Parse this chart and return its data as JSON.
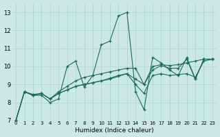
{
  "xlabel": "Humidex (Indice chaleur)",
  "bg_color": "#cce8e4",
  "grid_color": "#aad4cc",
  "line_color": "#1a6b5a",
  "xlim": [
    -0.5,
    23.5
  ],
  "ylim": [
    7,
    13.5
  ],
  "yticks": [
    7,
    8,
    9,
    10,
    11,
    12,
    13
  ],
  "xticks": [
    0,
    1,
    2,
    3,
    4,
    5,
    6,
    7,
    8,
    9,
    10,
    11,
    12,
    13,
    14,
    15,
    16,
    17,
    18,
    19,
    20,
    21,
    22,
    23
  ],
  "series": [
    [
      [
        0,
        7.0
      ],
      [
        1,
        8.6
      ],
      [
        2,
        8.4
      ],
      [
        3,
        8.4
      ],
      [
        4,
        8.0
      ],
      [
        5,
        8.2
      ],
      [
        6,
        10.0
      ],
      [
        7,
        10.3
      ],
      [
        8,
        8.85
      ],
      [
        9,
        9.5
      ],
      [
        10,
        11.2
      ],
      [
        11,
        11.4
      ],
      [
        12,
        12.8
      ],
      [
        13,
        13.0
      ],
      [
        14,
        8.6
      ],
      [
        15,
        7.6
      ],
      [
        16,
        10.5
      ],
      [
        17,
        10.2
      ],
      [
        18,
        9.8
      ],
      [
        19,
        9.5
      ],
      [
        20,
        10.5
      ],
      [
        21,
        9.3
      ],
      [
        22,
        10.4
      ],
      [
        23,
        10.4
      ]
    ],
    [
      [
        0,
        7.0
      ],
      [
        1,
        8.6
      ],
      [
        2,
        8.4
      ],
      [
        3,
        8.5
      ],
      [
        4,
        8.2
      ],
      [
        5,
        8.6
      ],
      [
        6,
        8.9
      ],
      [
        7,
        9.2
      ],
      [
        8,
        9.4
      ],
      [
        9,
        9.5
      ],
      [
        10,
        9.6
      ],
      [
        11,
        9.7
      ],
      [
        12,
        9.8
      ],
      [
        13,
        9.9
      ],
      [
        14,
        9.9
      ],
      [
        15,
        9.0
      ],
      [
        16,
        10.0
      ],
      [
        17,
        10.1
      ],
      [
        18,
        10.05
      ],
      [
        19,
        10.1
      ],
      [
        20,
        10.2
      ],
      [
        21,
        10.3
      ],
      [
        22,
        10.4
      ],
      [
        23,
        10.4
      ]
    ],
    [
      [
        0,
        7.0
      ],
      [
        1,
        8.6
      ],
      [
        2,
        8.4
      ],
      [
        3,
        8.5
      ],
      [
        4,
        8.2
      ],
      [
        5,
        8.5
      ],
      [
        6,
        8.7
      ],
      [
        7,
        8.9
      ],
      [
        8,
        9.0
      ],
      [
        9,
        9.1
      ],
      [
        10,
        9.2
      ],
      [
        11,
        9.35
      ],
      [
        12,
        9.5
      ],
      [
        13,
        9.6
      ],
      [
        14,
        9.0
      ],
      [
        15,
        8.5
      ],
      [
        16,
        9.5
      ],
      [
        17,
        9.6
      ],
      [
        18,
        9.5
      ],
      [
        19,
        9.55
      ],
      [
        20,
        9.6
      ],
      [
        21,
        9.4
      ],
      [
        22,
        10.3
      ],
      [
        23,
        10.4
      ]
    ],
    [
      [
        0,
        7.0
      ],
      [
        1,
        8.6
      ],
      [
        2,
        8.45
      ],
      [
        3,
        8.5
      ],
      [
        4,
        8.2
      ],
      [
        5,
        8.5
      ],
      [
        6,
        8.7
      ],
      [
        7,
        8.9
      ],
      [
        8,
        9.0
      ],
      [
        9,
        9.1
      ],
      [
        10,
        9.2
      ],
      [
        11,
        9.3
      ],
      [
        12,
        9.45
      ],
      [
        13,
        9.6
      ],
      [
        14,
        9.3
      ],
      [
        15,
        9.0
      ],
      [
        16,
        9.8
      ],
      [
        17,
        10.05
      ],
      [
        18,
        9.9
      ],
      [
        19,
        9.9
      ],
      [
        20,
        10.4
      ],
      [
        21,
        9.3
      ],
      [
        22,
        10.4
      ],
      [
        23,
        10.4
      ]
    ]
  ]
}
